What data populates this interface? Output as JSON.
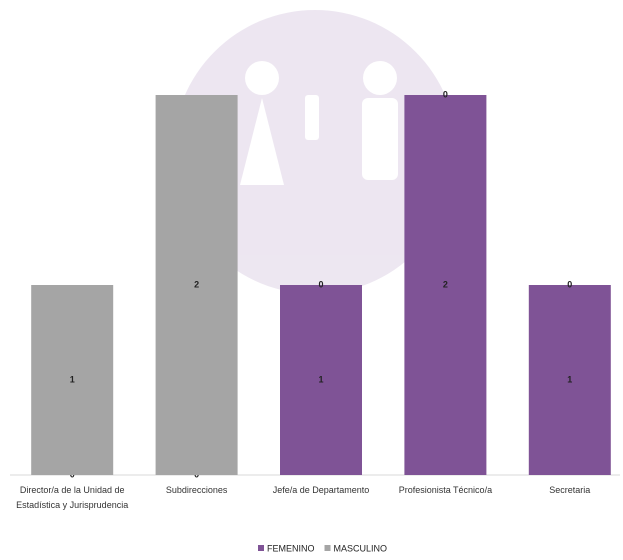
{
  "chart_data": {
    "type": "stacked_bar",
    "categories": [
      "Director/a de la Unidad de Estadística y Jurisprudencia",
      "Subdirecciones",
      "Jefe/a de Departamento",
      "Profesionista Técnico/a",
      "Secretaria"
    ],
    "series": [
      {
        "name": "FEMENINO",
        "color": "#7f5396",
        "values": [
          0,
          0,
          1,
          2,
          1
        ]
      },
      {
        "name": "MASCULINO",
        "color": "#a5a5a5",
        "values": [
          1,
          2,
          0,
          0,
          0
        ]
      }
    ],
    "ylim": [
      0,
      2
    ],
    "legend": "bottom"
  }
}
